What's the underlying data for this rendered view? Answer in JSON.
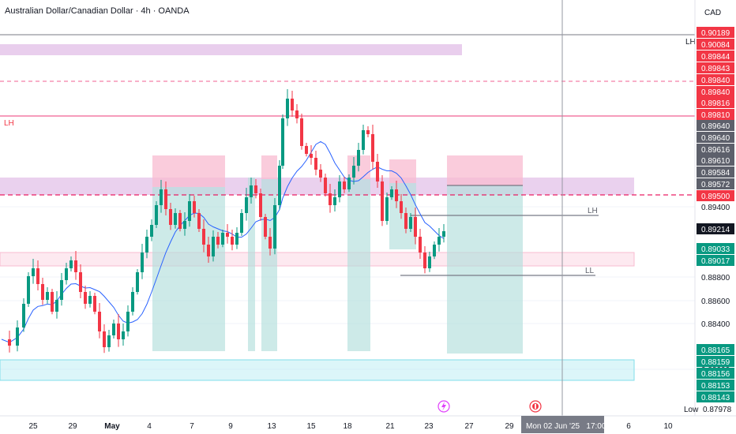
{
  "header": {
    "title": "Australian Dollar/Canadian Dollar · 4h · OANDA",
    "currency": "CAD"
  },
  "colors": {
    "up": "#089981",
    "down": "#f23645",
    "ma": "#2962ff",
    "resistance": "#e1bee7",
    "support": "#b2ebf2",
    "neutral_tag": "#5d606b",
    "current_tag": "#131722"
  },
  "drawings": {
    "lh_left": "LH",
    "lh_right": "LH",
    "lh_mid": "LH",
    "ll": "LL"
  },
  "price_axis": {
    "ticks": [
      "0.89400",
      "0.88800",
      "0.88600",
      "0.88400",
      "0.88000"
    ],
    "tags": [
      {
        "label": "0.90189",
        "color": "#f23645"
      },
      {
        "label": "0.90084",
        "color": "#f23645"
      },
      {
        "label": "0.89844",
        "color": "#f23645"
      },
      {
        "label": "0.89843",
        "color": "#f23645"
      },
      {
        "label": "0.89840",
        "color": "#f23645"
      },
      {
        "label": "0.89840",
        "color": "#f23645"
      },
      {
        "label": "0.89816",
        "color": "#f23645"
      },
      {
        "label": "0.89810",
        "color": "#f23645"
      },
      {
        "label": "0.89640",
        "color": "#5d606b"
      },
      {
        "label": "0.89640",
        "color": "#5d606b"
      },
      {
        "label": "0.89616",
        "color": "#5d606b"
      },
      {
        "label": "0.89610",
        "color": "#5d606b"
      },
      {
        "label": "0.89584",
        "color": "#5d606b"
      },
      {
        "label": "0.89572",
        "color": "#5d606b"
      },
      {
        "label": "0.89500",
        "color": "#f23645"
      },
      {
        "label": "0.89214",
        "color": "#131722"
      },
      {
        "label": "0.89033",
        "color": "#089981"
      },
      {
        "label": "0.89017",
        "color": "#089981"
      },
      {
        "label": "0.88165",
        "color": "#089981"
      },
      {
        "label": "0.88159",
        "color": "#089981"
      },
      {
        "label": "0.88156",
        "color": "#089981"
      },
      {
        "label": "0.88153",
        "color": "#089981"
      },
      {
        "label": "0.88143",
        "color": "#089981"
      }
    ],
    "low_label": "Low",
    "low_value": "0.87978"
  },
  "time_axis": {
    "labels": [
      "25",
      "29",
      "May",
      "4",
      "7",
      "9",
      "13",
      "15",
      "18",
      "21",
      "23",
      "27",
      "29",
      "6",
      "10"
    ],
    "crosshair_label": "Mon 02 Jun '25   17:00"
  }
}
